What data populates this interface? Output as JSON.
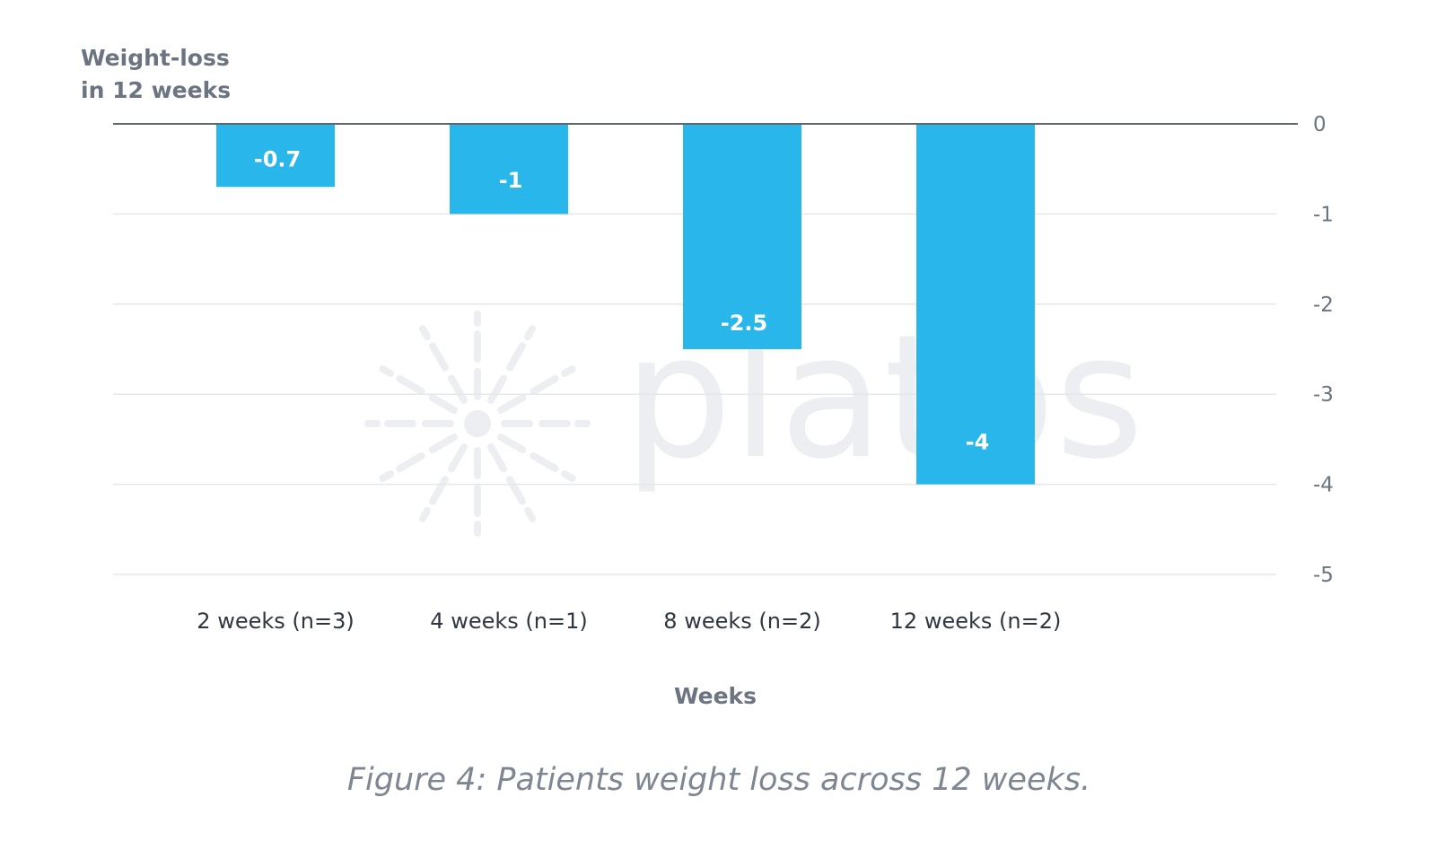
{
  "chart_data": {
    "type": "bar",
    "title": "",
    "ylabel_lines": [
      "Weight-loss",
      "in 12 weeks"
    ],
    "xlabel": "Weeks",
    "categories": [
      "2 weeks (n=3)",
      "4 weeks (n=1)",
      "8 weeks (n=2)",
      "12 weeks (n=2)"
    ],
    "values": [
      -0.7,
      -1,
      -2.5,
      -4
    ],
    "data_labels": [
      "-0.7",
      "-1",
      "-2.5",
      "-4"
    ],
    "ylim": [
      -5,
      0
    ],
    "yticks": [
      0,
      -1,
      -2,
      -3,
      -4,
      -5
    ],
    "ytick_labels": [
      "0",
      "-1",
      "-2",
      "-3",
      "-4",
      "-5"
    ],
    "y_axis_side": "right",
    "grid": true,
    "bar_color": "#29b6ea",
    "caption": "Figure 4: Patients weight loss across 12 weeks."
  },
  "watermark": {
    "text": "platos",
    "icon": "sunburst-icon"
  }
}
